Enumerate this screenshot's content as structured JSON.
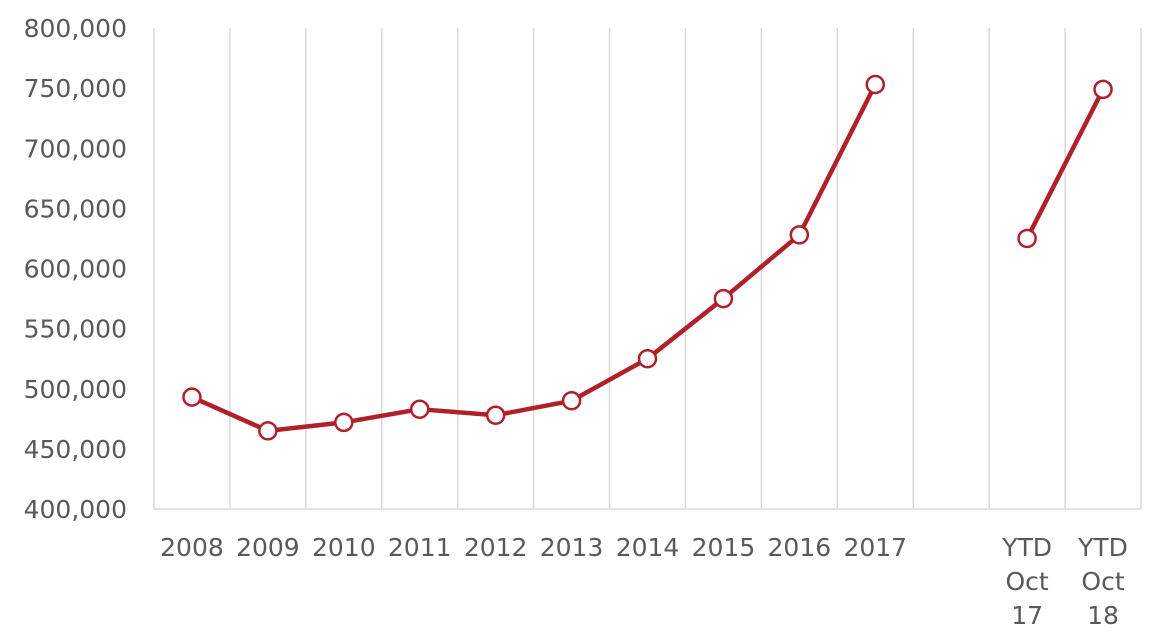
{
  "chart_data": {
    "type": "line",
    "title": "",
    "xlabel": "",
    "ylabel": "",
    "ylim": [
      400000,
      800000
    ],
    "ytick_step": 50000,
    "grid": "vertical",
    "legend": "none",
    "color": "#b01f2a",
    "categories": [
      [
        "2008"
      ],
      [
        "2009"
      ],
      [
        "2010"
      ],
      [
        "2011"
      ],
      [
        "2012"
      ],
      [
        "2013"
      ],
      [
        "2014"
      ],
      [
        "2015"
      ],
      [
        "2016"
      ],
      [
        "2017"
      ],
      [
        ""
      ],
      [
        "YTD",
        "Oct",
        "17"
      ],
      [
        "YTD",
        "Oct",
        "18"
      ]
    ],
    "series": [
      {
        "values": [
          493000,
          465000,
          472000,
          483000,
          478000,
          490000,
          525000,
          575000,
          628000,
          753000,
          null,
          625000,
          749000
        ]
      }
    ]
  }
}
